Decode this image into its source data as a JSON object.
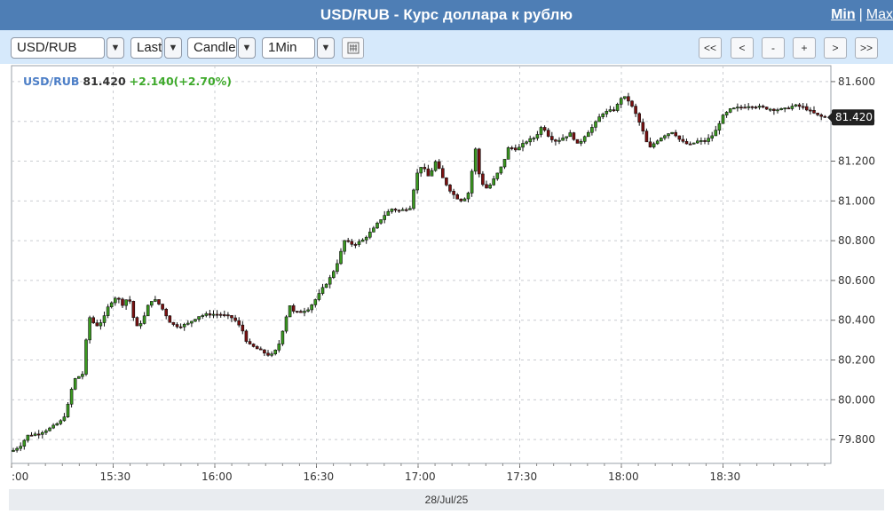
{
  "header": {
    "title": "USD/RUB - Курс доллара к рублю",
    "min_label": "Min",
    "separator": "|",
    "max_label": "Max"
  },
  "toolbar": {
    "symbol": "USD/RUB",
    "price_type": "Last",
    "chart_type": "Candle",
    "interval": "1Min",
    "dropdown_glyph": "▼",
    "nav": {
      "first": "<<",
      "prev": "<",
      "zoom_out": "-",
      "zoom_in": "+",
      "next": ">",
      "last": ">>"
    }
  },
  "info": {
    "symbol": "USD/RUB",
    "price": "81.420",
    "change": "+2.140(+2.70%)"
  },
  "date_label": "28/Jul/25",
  "colors": {
    "up": "#3a9a1f",
    "down": "#7a1010",
    "header_bg": "#4e7eb5",
    "toolbar_bg": "#d6e9fb"
  },
  "chart_data": {
    "type": "candlestick",
    "x_ticks": [
      ":00",
      "15:30",
      "16:00",
      "16:30",
      "17:00",
      "17:30",
      "18:00",
      "18:30"
    ],
    "y_ticks": [
      "81.600",
      "81.400",
      "81.200",
      "81.000",
      "80.800",
      "80.600",
      "80.400",
      "80.200",
      "80.000",
      "79.800"
    ],
    "ylim": [
      79.68,
      81.68
    ],
    "last_price_label": "81.420",
    "last_price": 81.42,
    "grid": true,
    "path": [
      [
        0,
        79.74
      ],
      [
        10,
        79.77
      ],
      [
        18,
        79.82
      ],
      [
        30,
        79.83
      ],
      [
        45,
        79.86
      ],
      [
        58,
        79.9
      ],
      [
        64,
        79.98
      ],
      [
        70,
        80.1
      ],
      [
        80,
        80.13
      ],
      [
        87,
        80.42
      ],
      [
        95,
        80.37
      ],
      [
        103,
        80.4
      ],
      [
        110,
        80.48
      ],
      [
        118,
        80.52
      ],
      [
        125,
        80.48
      ],
      [
        132,
        80.52
      ],
      [
        140,
        80.36
      ],
      [
        148,
        80.4
      ],
      [
        156,
        80.5
      ],
      [
        163,
        80.5
      ],
      [
        171,
        80.45
      ],
      [
        180,
        80.38
      ],
      [
        188,
        80.37
      ],
      [
        198,
        80.38
      ],
      [
        210,
        80.42
      ],
      [
        222,
        80.43
      ],
      [
        235,
        80.43
      ],
      [
        250,
        80.41
      ],
      [
        260,
        80.35
      ],
      [
        266,
        80.28
      ],
      [
        275,
        80.26
      ],
      [
        283,
        80.24
      ],
      [
        292,
        80.22
      ],
      [
        300,
        80.26
      ],
      [
        306,
        80.36
      ],
      [
        313,
        80.48
      ],
      [
        318,
        80.44
      ],
      [
        325,
        80.44
      ],
      [
        335,
        80.46
      ],
      [
        345,
        80.52
      ],
      [
        352,
        80.57
      ],
      [
        360,
        80.62
      ],
      [
        368,
        80.7
      ],
      [
        375,
        80.8
      ],
      [
        385,
        80.78
      ],
      [
        395,
        80.8
      ],
      [
        408,
        80.86
      ],
      [
        418,
        80.92
      ],
      [
        428,
        80.96
      ],
      [
        438,
        80.95
      ],
      [
        450,
        80.97
      ],
      [
        455,
        81.12
      ],
      [
        462,
        81.18
      ],
      [
        470,
        81.12
      ],
      [
        478,
        81.2
      ],
      [
        485,
        81.12
      ],
      [
        493,
        81.06
      ],
      [
        500,
        81.02
      ],
      [
        508,
        81.0
      ],
      [
        516,
        81.05
      ],
      [
        522,
        81.28
      ],
      [
        528,
        81.1
      ],
      [
        536,
        81.06
      ],
      [
        545,
        81.12
      ],
      [
        553,
        81.18
      ],
      [
        560,
        81.27
      ],
      [
        570,
        81.26
      ],
      [
        580,
        81.3
      ],
      [
        590,
        81.32
      ],
      [
        598,
        81.38
      ],
      [
        606,
        81.32
      ],
      [
        614,
        81.3
      ],
      [
        622,
        81.32
      ],
      [
        630,
        81.34
      ],
      [
        638,
        81.28
      ],
      [
        646,
        81.33
      ],
      [
        656,
        81.38
      ],
      [
        665,
        81.44
      ],
      [
        672,
        81.45
      ],
      [
        680,
        81.46
      ],
      [
        688,
        81.53
      ],
      [
        696,
        81.5
      ],
      [
        705,
        81.42
      ],
      [
        712,
        81.34
      ],
      [
        718,
        81.26
      ],
      [
        726,
        81.3
      ],
      [
        735,
        81.33
      ],
      [
        745,
        81.35
      ],
      [
        754,
        81.3
      ],
      [
        764,
        81.28
      ],
      [
        772,
        81.3
      ],
      [
        782,
        81.3
      ],
      [
        792,
        81.34
      ],
      [
        800,
        81.42
      ],
      [
        810,
        81.46
      ],
      [
        820,
        81.47
      ],
      [
        832,
        81.48
      ],
      [
        845,
        81.47
      ],
      [
        858,
        81.46
      ],
      [
        870,
        81.46
      ],
      [
        882,
        81.48
      ],
      [
        893,
        81.47
      ],
      [
        900,
        81.45
      ],
      [
        908,
        81.43
      ],
      [
        915,
        81.42
      ]
    ]
  }
}
